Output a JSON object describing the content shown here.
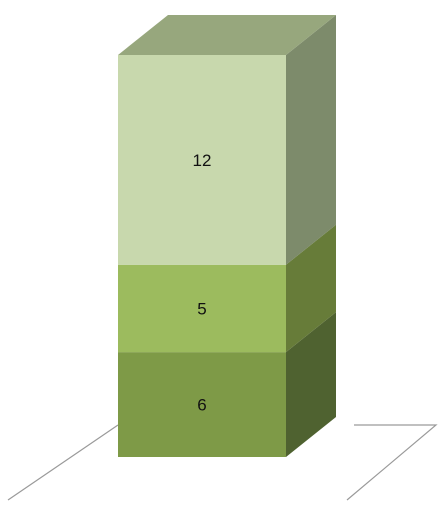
{
  "chart_data": {
    "type": "bar",
    "stacked": true,
    "three_d": true,
    "categories": [
      ""
    ],
    "series": [
      {
        "values": [
          6
        ],
        "color": "#7e9a47",
        "top_color": "#9bb45b",
        "side_color": "#4f6230",
        "label": "6"
      },
      {
        "values": [
          5
        ],
        "color": "#9cbb5e",
        "top_color": "#b5cf7c",
        "side_color": "#677c39",
        "label": "5"
      },
      {
        "values": [
          12
        ],
        "color": "#c8d8ad",
        "top_color": "#97a77d",
        "side_color": "#7d8b6b",
        "label": "12"
      }
    ],
    "ylim": [
      0,
      23
    ],
    "grid": false,
    "legend": "none"
  }
}
